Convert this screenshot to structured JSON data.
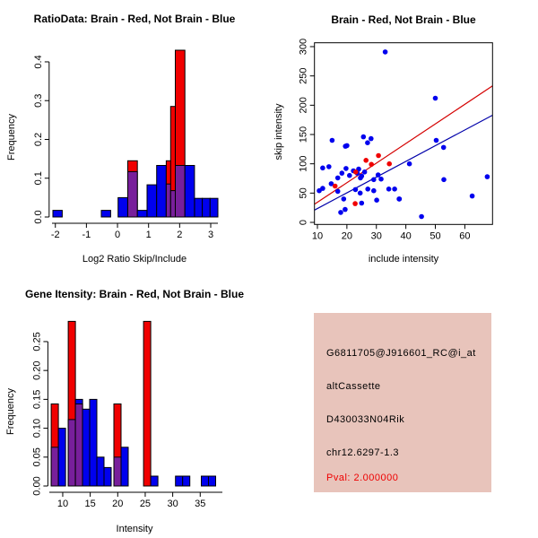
{
  "colors": {
    "red": "#F00000",
    "blue": "#0000EE",
    "purple": "#781F9B",
    "line_red": "#D40000",
    "line_blue": "#0000AA",
    "axis_black": "#000000",
    "info_background": "#E8C4BB",
    "pval_red": "#EE0000"
  },
  "chart_data": [
    {
      "id": "ratio_hist",
      "type": "bar",
      "title": "RatioData: Brain - Red, Not Brain - Blue",
      "xlabel": "Log2 Ratio Skip/Include",
      "ylabel": "Frequency",
      "legend_note": "red = Brain, blue = Not Brain, purple = overlap",
      "xlim": [
        -2.2,
        3.3
      ],
      "ylim": [
        0,
        0.445
      ],
      "x_ticks": [
        {
          "v": -2,
          "t": "-2"
        },
        {
          "v": -1,
          "t": "-1"
        },
        {
          "v": 0,
          "t": "0"
        },
        {
          "v": 1,
          "t": "1"
        },
        {
          "v": 2,
          "t": "2"
        },
        {
          "v": 3,
          "t": "3"
        }
      ],
      "y_ticks": [
        {
          "v": 0,
          "t": "0.0"
        },
        {
          "v": 0.1,
          "t": "0.1"
        },
        {
          "v": 0.2,
          "t": "0.2"
        },
        {
          "v": 0.3,
          "t": "0.3"
        },
        {
          "v": 0.4,
          "t": "0.4"
        }
      ],
      "bars": [
        [
          -2.08,
          -1.78,
          0.017,
          "B"
        ],
        [
          -0.52,
          -0.22,
          0.017,
          "B"
        ],
        [
          0.02,
          0.33,
          0.05,
          "B"
        ],
        [
          0.33,
          0.64,
          0.145,
          "R"
        ],
        [
          0.33,
          0.64,
          0.117,
          "P"
        ],
        [
          0.64,
          0.95,
          0.017,
          "B"
        ],
        [
          0.95,
          1.26,
          0.083,
          "B"
        ],
        [
          1.26,
          1.57,
          0.133,
          "B"
        ],
        [
          1.57,
          1.88,
          0.145,
          "R"
        ],
        [
          1.57,
          1.88,
          0.085,
          "P"
        ],
        [
          1.71,
          2.02,
          0.285,
          "R"
        ],
        [
          1.71,
          2.02,
          0.068,
          "P"
        ],
        [
          1.86,
          2.17,
          0.43,
          "R"
        ],
        [
          1.86,
          2.17,
          0.133,
          "P"
        ],
        [
          2.17,
          2.48,
          0.133,
          "B"
        ],
        [
          2.48,
          2.73,
          0.048,
          "B"
        ],
        [
          2.73,
          2.98,
          0.048,
          "B"
        ],
        [
          2.98,
          3.23,
          0.048,
          "B"
        ]
      ]
    },
    {
      "id": "intensity_scatter",
      "type": "scatter",
      "title": "Brain - Red, Not Brain - Blue",
      "xlabel": "include intensity",
      "ylabel": "skip intensity",
      "xlim": [
        9,
        69.4
      ],
      "ylim": [
        -3.5,
        306.6
      ],
      "x_ticks": [
        {
          "v": 10,
          "t": "10"
        },
        {
          "v": 20,
          "t": "20"
        },
        {
          "v": 30,
          "t": "30"
        },
        {
          "v": 40,
          "t": "40"
        },
        {
          "v": 50,
          "t": "50"
        },
        {
          "v": 60,
          "t": "60"
        }
      ],
      "y_ticks": [
        {
          "v": 0,
          "t": "0"
        },
        {
          "v": 50,
          "t": "50"
        },
        {
          "v": 100,
          "t": "100"
        },
        {
          "v": 150,
          "t": "150"
        },
        {
          "v": 200,
          "t": "200"
        },
        {
          "v": 250,
          "t": "250"
        },
        {
          "v": 300,
          "t": "300"
        }
      ],
      "points_blue": [
        [
          33,
          291
        ],
        [
          50,
          212
        ],
        [
          15,
          140
        ],
        [
          20,
          131
        ],
        [
          25.6,
          146
        ],
        [
          27,
          136
        ],
        [
          28.2,
          143
        ],
        [
          50.3,
          140
        ],
        [
          52.8,
          128
        ],
        [
          11.8,
          93
        ],
        [
          13.9,
          95
        ],
        [
          16.9,
          76
        ],
        [
          18.3,
          84
        ],
        [
          19.7,
          92
        ],
        [
          20.9,
          80
        ],
        [
          22.2,
          88
        ],
        [
          23.5,
          84
        ],
        [
          24,
          91
        ],
        [
          25,
          79
        ],
        [
          26,
          86
        ],
        [
          29.1,
          73
        ],
        [
          30.6,
          81
        ],
        [
          31.6,
          74
        ],
        [
          41.2,
          100
        ],
        [
          52.9,
          73
        ],
        [
          67.6,
          78
        ],
        [
          11.8,
          58
        ],
        [
          16.9,
          53
        ],
        [
          22.9,
          56
        ],
        [
          24.5,
          50
        ],
        [
          27.1,
          57
        ],
        [
          29.1,
          54
        ],
        [
          36.2,
          57
        ],
        [
          62.5,
          45
        ],
        [
          18.9,
          40
        ],
        [
          25,
          33
        ],
        [
          30.1,
          38
        ],
        [
          37.7,
          40
        ],
        [
          17.9,
          17
        ],
        [
          19.4,
          22
        ],
        [
          45.3,
          10
        ],
        [
          14.7,
          66
        ],
        [
          10.6,
          54
        ],
        [
          34.2,
          57
        ],
        [
          37.8,
          40
        ],
        [
          19.5,
          130
        ],
        [
          24.6,
          76
        ]
      ],
      "points_red": [
        [
          16,
          62
        ],
        [
          23,
          86
        ],
        [
          26.5,
          106
        ],
        [
          28.3,
          99
        ],
        [
          30.7,
          114
        ],
        [
          34.4,
          100
        ],
        [
          22.8,
          32
        ]
      ],
      "lines": [
        {
          "color": "line_red",
          "x1": 9,
          "y1": 31,
          "x2": 69.4,
          "y2": 233
        },
        {
          "color": "line_blue",
          "x1": 9,
          "y1": 21,
          "x2": 69.4,
          "y2": 183
        }
      ]
    },
    {
      "id": "gene_hist",
      "type": "bar",
      "title": "Gene Itensity: Brain - Red, Not Brain - Blue",
      "xlabel": "Intensity",
      "ylabel": "Frequency",
      "legend_note": "red = Brain, blue = Not Brain, purple = overlap",
      "xlim": [
        7.3,
        38.9
      ],
      "ylim": [
        0,
        0.292
      ],
      "x_ticks": [
        {
          "v": 10,
          "t": "10"
        },
        {
          "v": 15,
          "t": "15"
        },
        {
          "v": 20,
          "t": "20"
        },
        {
          "v": 25,
          "t": "25"
        },
        {
          "v": 30,
          "t": "30"
        },
        {
          "v": 35,
          "t": "35"
        }
      ],
      "y_ticks": [
        {
          "v": 0,
          "t": "0.00"
        },
        {
          "v": 0.05,
          "t": "0.05"
        },
        {
          "v": 0.1,
          "t": "0.10"
        },
        {
          "v": 0.15,
          "t": "0.15"
        },
        {
          "v": 0.2,
          "t": "0.20"
        },
        {
          "v": 0.25,
          "t": "0.25"
        }
      ],
      "bars": [
        [
          7.9,
          9.2,
          0.142,
          "R"
        ],
        [
          7.9,
          9.2,
          0.067,
          "P"
        ],
        [
          9.2,
          10.5,
          0.1,
          "B"
        ],
        [
          11.0,
          12.3,
          0.285,
          "R"
        ],
        [
          11.0,
          12.3,
          0.115,
          "P"
        ],
        [
          12.3,
          13.6,
          0.15,
          "B"
        ],
        [
          12.3,
          13.6,
          0.142,
          "P"
        ],
        [
          13.6,
          14.9,
          0.133,
          "B"
        ],
        [
          14.9,
          16.2,
          0.15,
          "B"
        ],
        [
          16.2,
          17.5,
          0.05,
          "B"
        ],
        [
          17.5,
          18.8,
          0.032,
          "B"
        ],
        [
          19.3,
          20.6,
          0.142,
          "R"
        ],
        [
          19.3,
          20.6,
          0.05,
          "P"
        ],
        [
          20.6,
          21.9,
          0.067,
          "B"
        ],
        [
          24.7,
          26.0,
          0.285,
          "R"
        ],
        [
          26.0,
          27.3,
          0.017,
          "B"
        ],
        [
          30.5,
          31.8,
          0.017,
          "B"
        ],
        [
          31.8,
          33.1,
          0.017,
          "B"
        ],
        [
          35.2,
          36.5,
          0.017,
          "B"
        ],
        [
          36.5,
          37.8,
          0.017,
          "B"
        ]
      ]
    }
  ],
  "info_panel": {
    "probe": "G6811705@J916601_RC@i_at",
    "event_type": "altCassette",
    "gene": "D430033N04Rik",
    "location": "chr12.6297-1.3",
    "pval": "Pval: 2.000000"
  }
}
